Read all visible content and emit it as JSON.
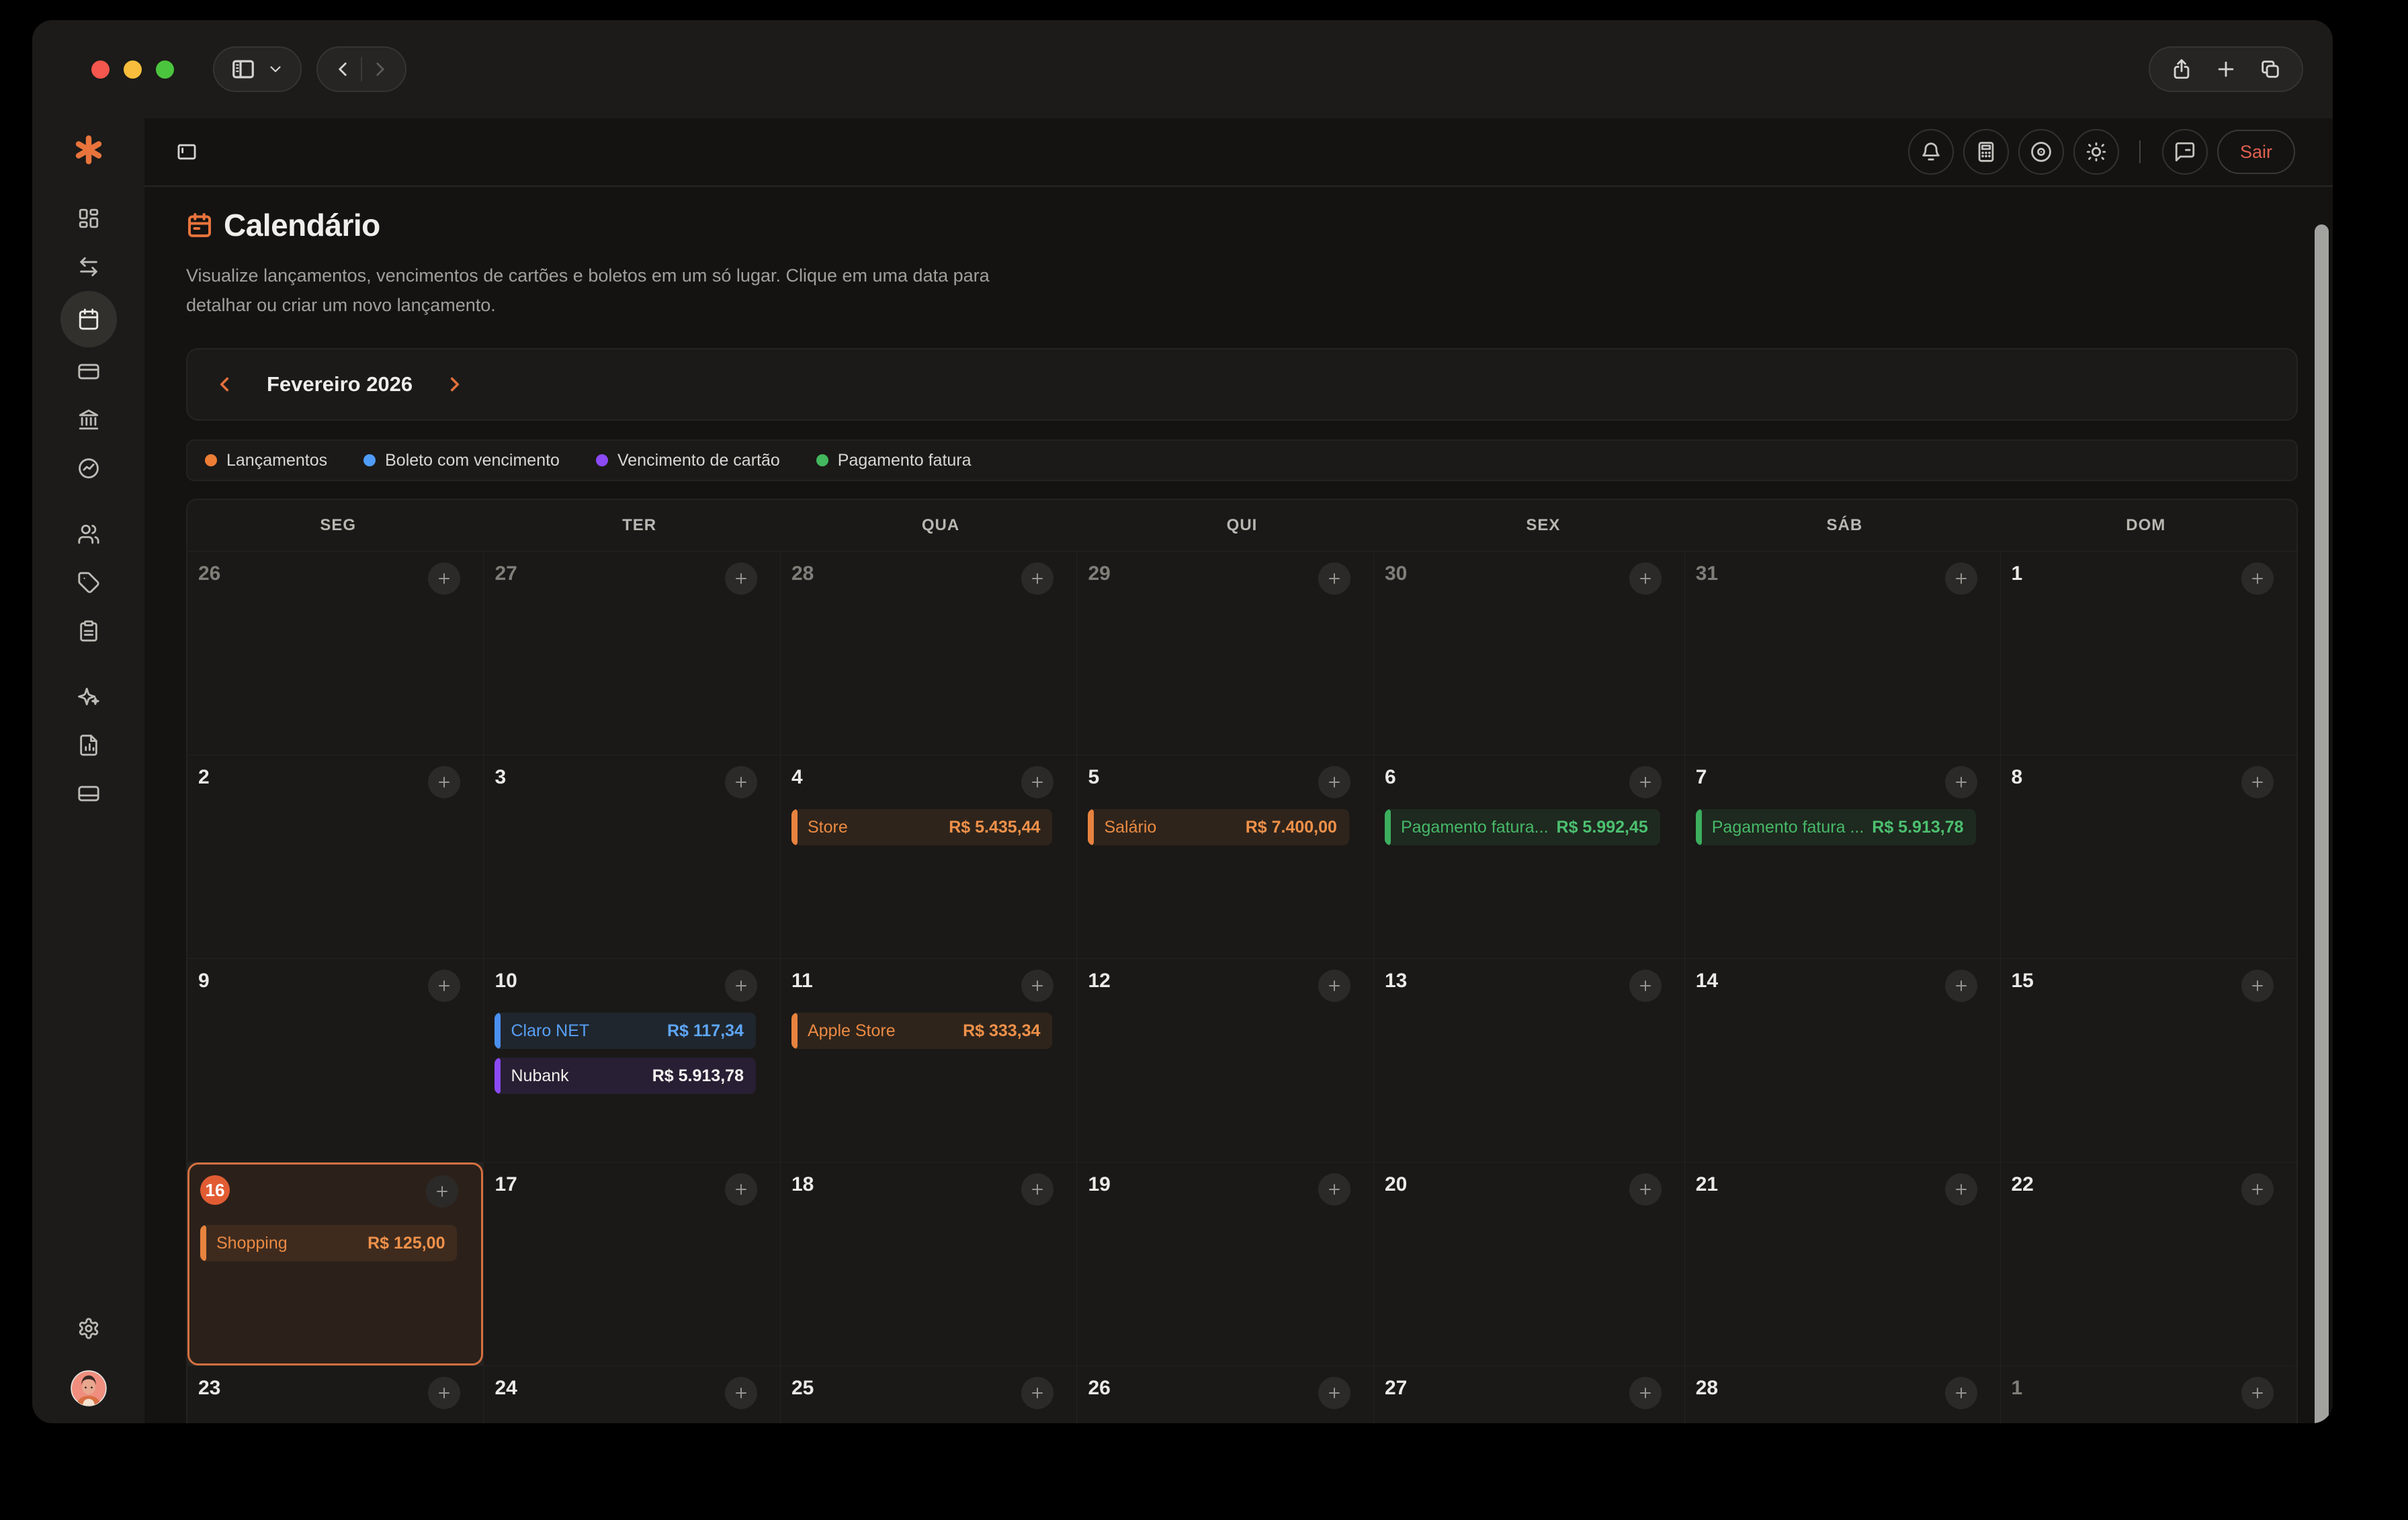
{
  "browser": {
    "window_controls": [
      "close",
      "minimize",
      "maximize"
    ],
    "toolbar_icons": [
      "sidebar-toggle-icon",
      "chevron-down-icon",
      "back-icon",
      "forward-icon",
      "share-icon",
      "new-tab-icon",
      "tab-overview-icon"
    ]
  },
  "app": {
    "brand_color": "#e8743c",
    "sidebar_icons": [
      "logo-asterisk",
      "dashboard",
      "transfers",
      "calendar",
      "cards",
      "bank",
      "performance",
      "users",
      "tags",
      "notes",
      "ai-sparkles",
      "reports",
      "accounts",
      "settings",
      "avatar"
    ],
    "topbar": {
      "icons": [
        "bell",
        "calculator",
        "privacy-eye",
        "theme-sun",
        "feedback-chat"
      ],
      "sign_out_label": "Sair",
      "sign_out_color": "#e0604f"
    },
    "page": {
      "title": "Calendário",
      "subtitle": "Visualize lançamentos, vencimentos de cartões e boletos em um só lugar. Clique em uma data para detalhar ou criar um novo lançamento.",
      "month_nav": {
        "label": "Fevereiro 2026",
        "prev": "chevron-left",
        "next": "chevron-right"
      },
      "legend": [
        {
          "label": "Lançamentos",
          "color": "#ed7d35"
        },
        {
          "label": "Boleto com vencimento",
          "color": "#4f9cf7"
        },
        {
          "label": "Vencimento de cartão",
          "color": "#8b4af5"
        },
        {
          "label": "Pagamento fatura",
          "color": "#43b75d"
        }
      ],
      "weekdays": [
        "SEG",
        "TER",
        "QUA",
        "QUI",
        "SEX",
        "SÁB",
        "DOM"
      ],
      "event_types": {
        "lancamento": {
          "bar": "#e8833f",
          "bg": "rgba(237,138,64,0.10)",
          "name_color": "#ea8a43",
          "value_color": "#f0914a"
        },
        "boleto": {
          "bar": "#4a90f0",
          "bg": "rgba(87,160,246,0.10)",
          "name_color": "#57a0f6",
          "value_color": "#5ea6f8"
        },
        "cartao": {
          "bar": "#8b4af5",
          "bg": "rgba(139,74,245,0.13)",
          "name_color": "#f1efec",
          "value_color": "#f7f5f2"
        },
        "fatura": {
          "bar": "#3cae5e",
          "bg": "rgba(70,185,104,0.10)",
          "name_color": "#46b968",
          "value_color": "#4cc070"
        }
      },
      "weeks": [
        {
          "days": [
            {
              "num": "26",
              "muted": true
            },
            {
              "num": "27",
              "muted": true
            },
            {
              "num": "28",
              "muted": true
            },
            {
              "num": "29",
              "muted": true
            },
            {
              "num": "30",
              "muted": true
            },
            {
              "num": "31",
              "muted": true
            },
            {
              "num": "1"
            }
          ]
        },
        {
          "days": [
            {
              "num": "2"
            },
            {
              "num": "3"
            },
            {
              "num": "4",
              "events": [
                {
                  "name": "Store",
                  "value": "R$ 5.435,44",
                  "type": "lancamento"
                }
              ]
            },
            {
              "num": "5",
              "events": [
                {
                  "name": "Salário",
                  "value": "R$ 7.400,00",
                  "type": "lancamento"
                }
              ]
            },
            {
              "num": "6",
              "events": [
                {
                  "name": "Pagamento fatura...",
                  "value": "R$ 5.992,45",
                  "type": "fatura"
                }
              ]
            },
            {
              "num": "7",
              "events": [
                {
                  "name": "Pagamento fatura ...",
                  "value": "R$ 5.913,78",
                  "type": "fatura"
                }
              ]
            },
            {
              "num": "8"
            }
          ]
        },
        {
          "days": [
            {
              "num": "9"
            },
            {
              "num": "10",
              "events": [
                {
                  "name": "Claro NET",
                  "value": "R$ 117,34",
                  "type": "boleto"
                },
                {
                  "name": "Nubank",
                  "value": "R$ 5.913,78",
                  "type": "cartao"
                }
              ]
            },
            {
              "num": "11",
              "events": [
                {
                  "name": "Apple Store",
                  "value": "R$ 333,34",
                  "type": "lancamento"
                }
              ]
            },
            {
              "num": "12"
            },
            {
              "num": "13"
            },
            {
              "num": "14"
            },
            {
              "num": "15"
            }
          ]
        },
        {
          "days": [
            {
              "num": "16",
              "selected": true,
              "events": [
                {
                  "name": "Shopping",
                  "value": "R$ 125,00",
                  "type": "lancamento"
                }
              ]
            },
            {
              "num": "17"
            },
            {
              "num": "18"
            },
            {
              "num": "19"
            },
            {
              "num": "20"
            },
            {
              "num": "21"
            },
            {
              "num": "22"
            }
          ]
        },
        {
          "days": [
            {
              "num": "23"
            },
            {
              "num": "24"
            },
            {
              "num": "25"
            },
            {
              "num": "26"
            },
            {
              "num": "27"
            },
            {
              "num": "28"
            },
            {
              "num": "1",
              "muted": true
            }
          ]
        }
      ]
    }
  }
}
